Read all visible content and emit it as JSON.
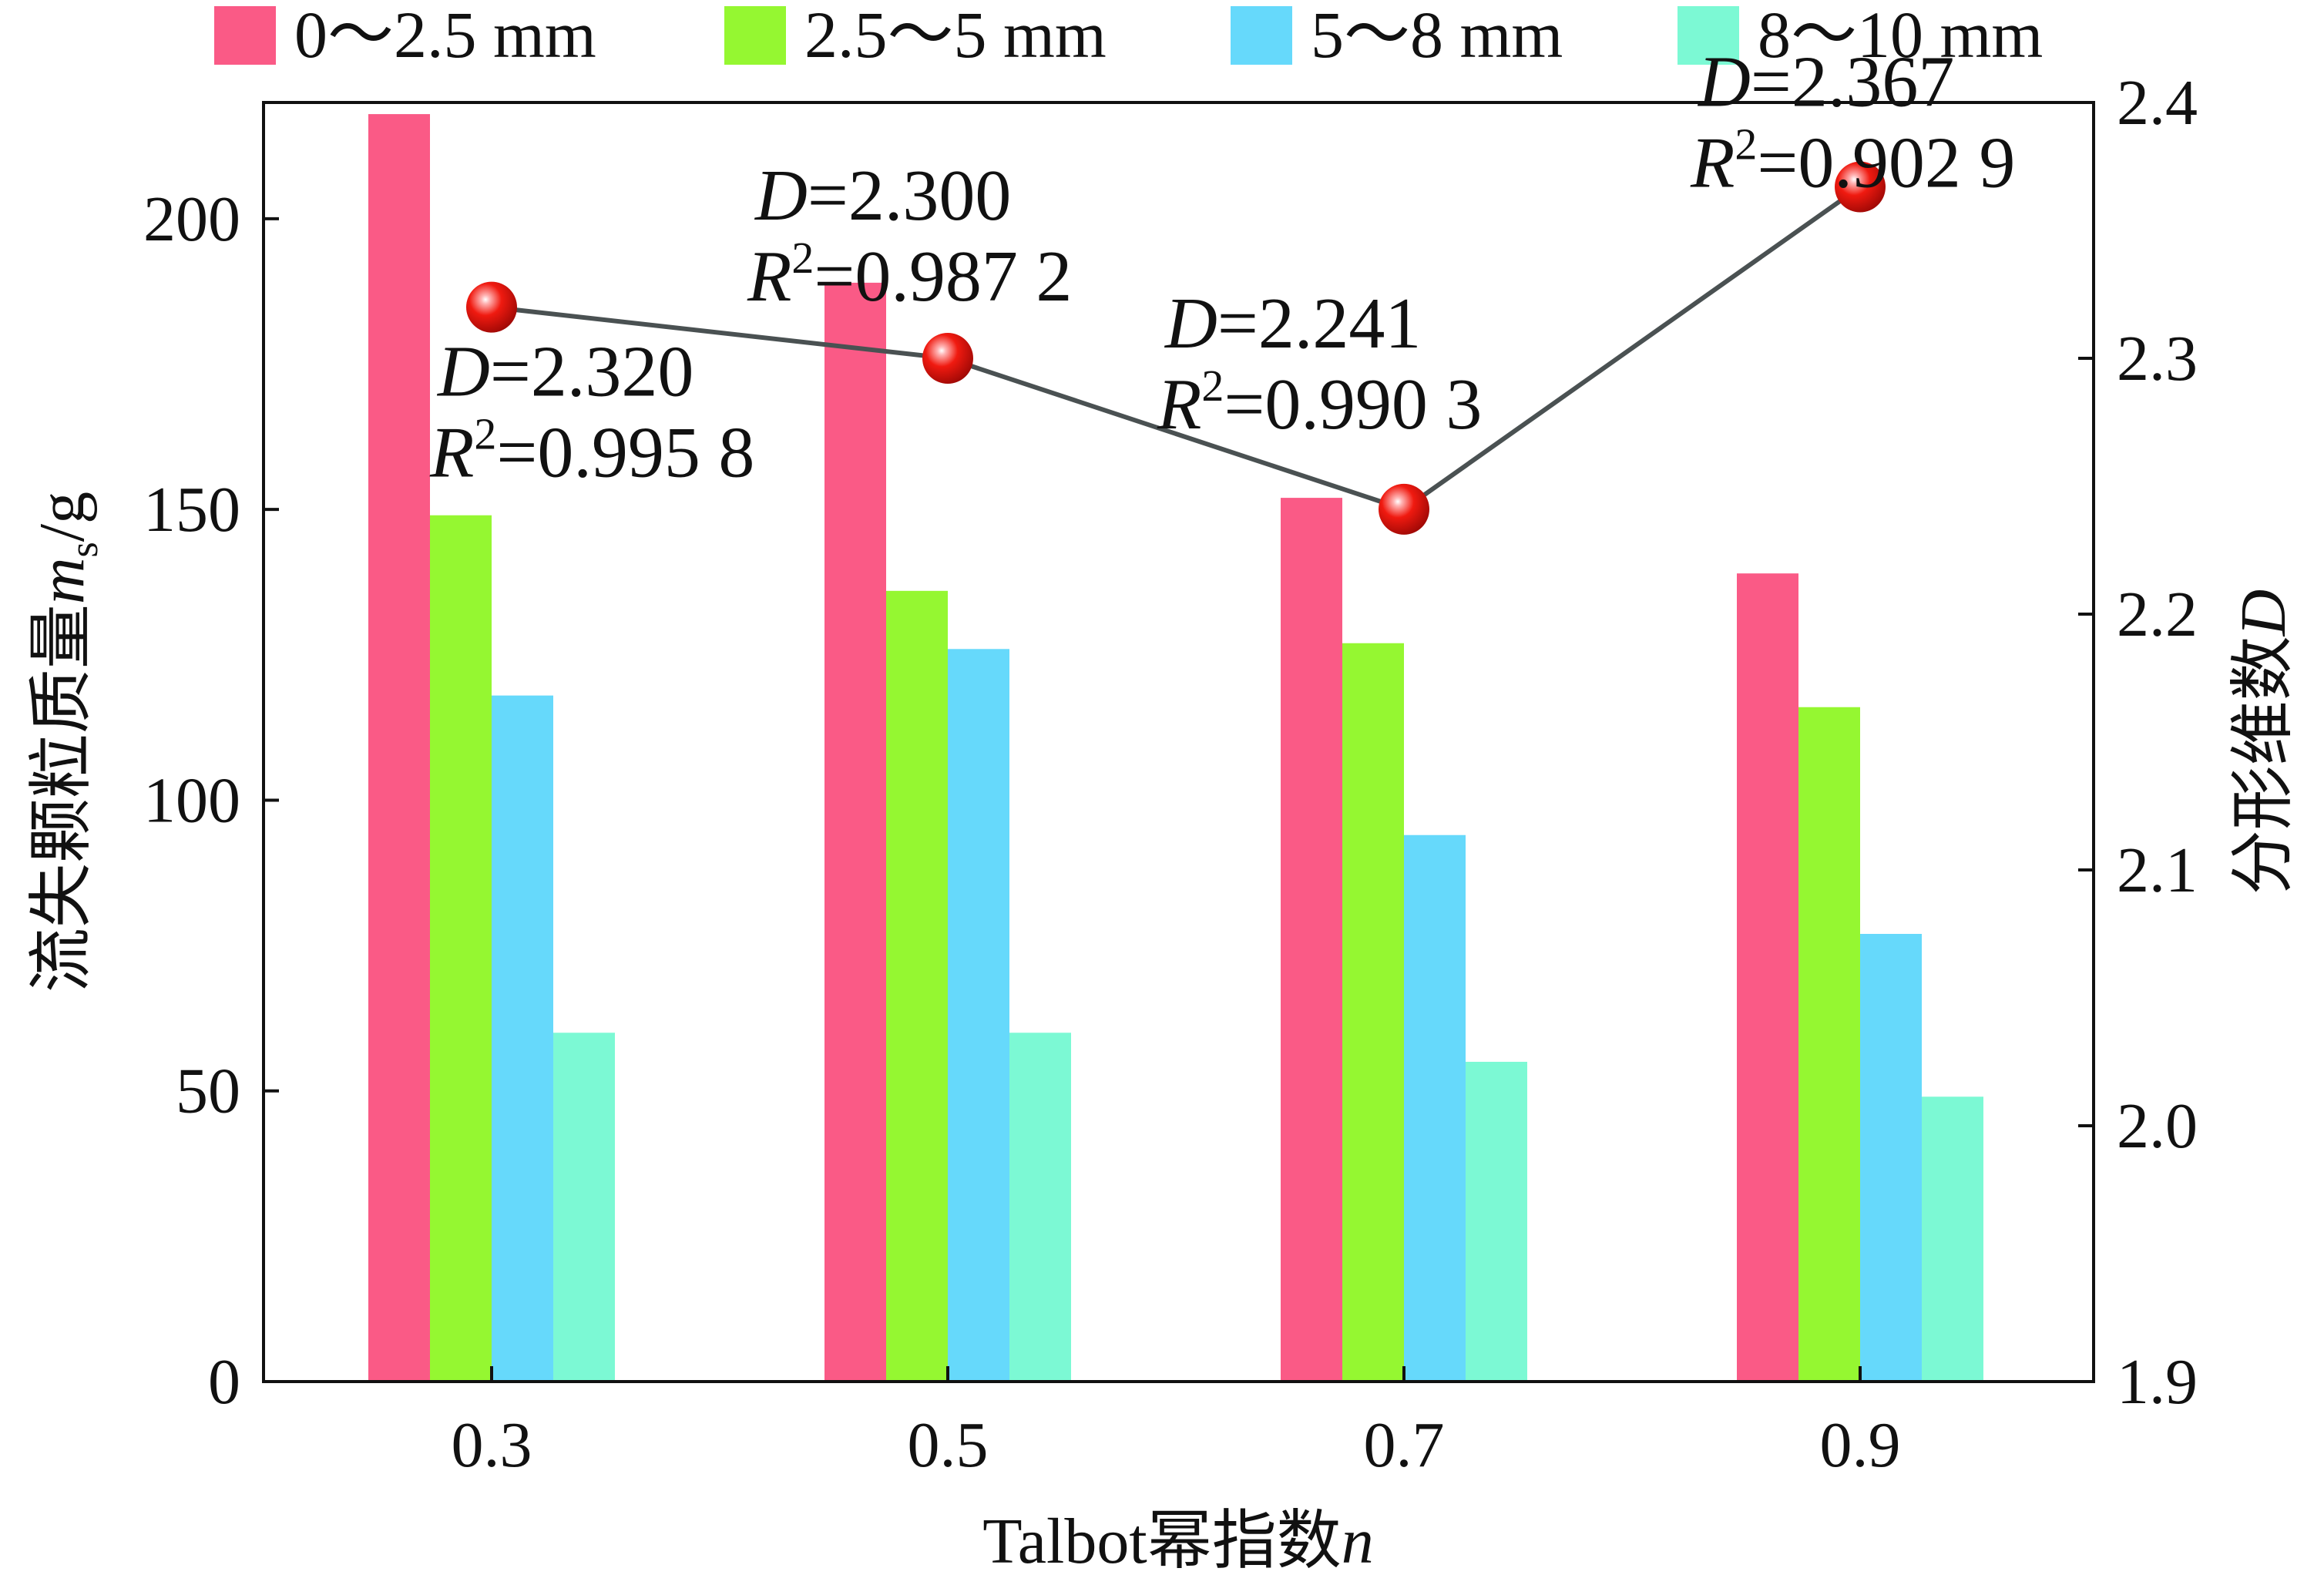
{
  "chart_data": {
    "type": "bar",
    "categories": [
      "0.3",
      "0.5",
      "0.7",
      "0.9"
    ],
    "series": [
      {
        "name": "0～2.5 mm",
        "color": "#fa5a86",
        "values": [
          218,
          189,
          152,
          139
        ]
      },
      {
        "name": "2.5～5 mm",
        "color": "#95f731",
        "values": [
          149,
          136,
          127,
          116
        ]
      },
      {
        "name": "5～8 mm",
        "color": "#66d9fb",
        "values": [
          118,
          126,
          94,
          77
        ]
      },
      {
        "name": "8～10 mm",
        "color": "#7cf9d4",
        "values": [
          60,
          60,
          55,
          49
        ]
      }
    ],
    "line_series": {
      "axis": "right",
      "line_color": "#4a5152",
      "marker_color": "#e8150e",
      "values": [
        2.32,
        2.3,
        2.241,
        2.367
      ],
      "annotations": [
        {
          "d_label": "D",
          "d_value": "=2.320",
          "r_label": "R",
          "r_sup": "2",
          "r_value": "=0.995 8"
        },
        {
          "d_label": "D",
          "d_value": "=2.300",
          "r_label": "R",
          "r_sup": "2",
          "r_value": "=0.987 2"
        },
        {
          "d_label": "D",
          "d_value": "=2.241",
          "r_label": "R",
          "r_sup": "2",
          "r_value": "=0.990 3"
        },
        {
          "d_label": "D",
          "d_value": "=2.367",
          "r_label": "R",
          "r_sup": "2",
          "r_value": "=0.902 9"
        }
      ]
    },
    "y_left": {
      "label_text": "流失颗粒质量",
      "label_var": "m",
      "label_sub": "s",
      "label_unit": "/g",
      "ylim": [
        0,
        220
      ],
      "ticks": [
        0,
        50,
        100,
        150,
        200
      ],
      "tick_labels": [
        "0",
        "50",
        "100",
        "150",
        "200"
      ]
    },
    "y_right": {
      "label_text": "分形维数",
      "label_var": "D",
      "ylim": [
        1.9,
        2.4
      ],
      "ticks": [
        1.9,
        2.0,
        2.1,
        2.2,
        2.3,
        2.4
      ],
      "tick_labels": [
        "1.9",
        "2.0",
        "2.1",
        "2.2",
        "2.3",
        "2.4"
      ]
    },
    "x_axis": {
      "label_text": "Talbot幂指数",
      "label_var": "n"
    },
    "legend_position": "top",
    "grid": false
  }
}
